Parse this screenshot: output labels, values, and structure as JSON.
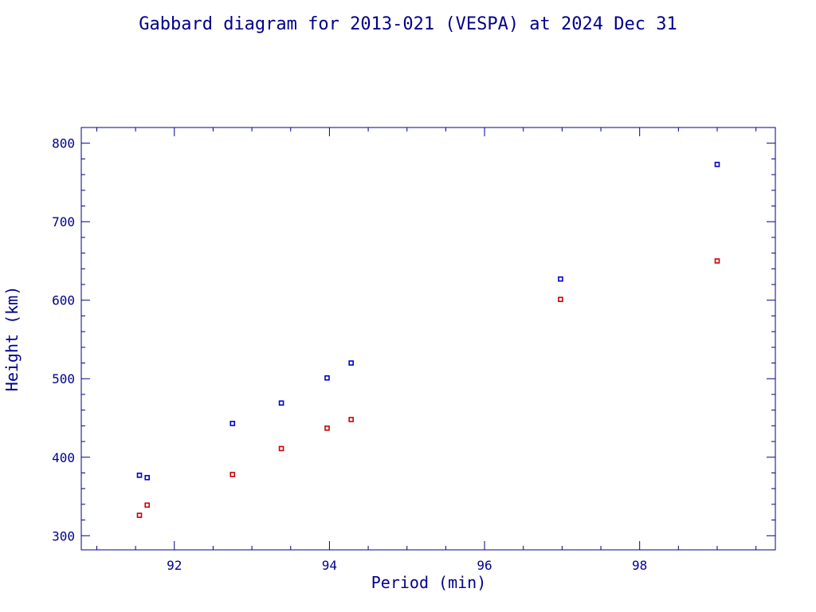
{
  "chart_data": {
    "type": "scatter",
    "title": "Gabbard diagram for 2013-021 (VESPA) at 2024 Dec 31",
    "xlabel": "Period (min)",
    "ylabel": "Height (km)",
    "xlim": [
      90.8,
      99.75
    ],
    "ylim": [
      282,
      820
    ],
    "xticks": [
      "92",
      "94",
      "96",
      "98"
    ],
    "yticks": [
      "300",
      "400",
      "500",
      "600",
      "700",
      "800"
    ],
    "grid": false,
    "legend": "none",
    "colors": {
      "axis": "#00008b",
      "apogee": "#0000cc",
      "perigee": "#cc0000"
    },
    "series": [
      {
        "x": [
          91.55,
          91.65,
          92.75,
          93.38,
          93.97,
          94.28,
          96.98,
          99.0
        ],
        "y": [
          377,
          374,
          443,
          469,
          501,
          520,
          627,
          773
        ]
      },
      {
        "x": [
          91.55,
          91.65,
          92.75,
          93.38,
          93.97,
          94.28,
          96.98,
          99.0
        ],
        "y": [
          326,
          339,
          378,
          411,
          437,
          448,
          601,
          650
        ]
      }
    ]
  }
}
